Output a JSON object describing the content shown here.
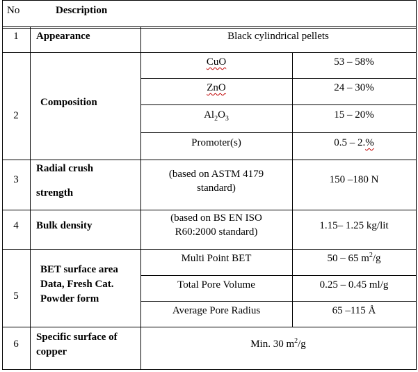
{
  "header": {
    "no": "No",
    "description": "Description"
  },
  "rows": {
    "r1": {
      "no": "1",
      "label": "Appearance",
      "value": "Black cylindrical pellets"
    },
    "r2": {
      "no": "2",
      "label": "Composition",
      "items": [
        {
          "name": "CuO",
          "value": "53 – 58%"
        },
        {
          "name": "ZnO",
          "value": "24 – 30%"
        },
        {
          "name_main": "Al",
          "name_sub1": "2",
          "name_mid": "O",
          "name_sub2": "3",
          "value": "15 – 20%"
        },
        {
          "name": "Promoter(s)",
          "value_main": "0.5 – 2.",
          "value_tail": "%"
        }
      ]
    },
    "r3": {
      "no": "3",
      "label_l1": "Radial crush",
      "label_l2": "strength",
      "note_l1": "(based on ASTM 4179",
      "note_l2": "standard)",
      "value": "150 –180 N"
    },
    "r4": {
      "no": "4",
      "label": "Bulk density",
      "note_l1": "(based on BS EN ISO",
      "note_l2": "R60:2000 standard)",
      "value": "1.15– 1.25 kg/lit"
    },
    "r5": {
      "no": "5",
      "label_l1": "BET surface area",
      "label_l2": "Data, Fresh Cat.",
      "label_l3": "Powder form",
      "items": [
        {
          "name": "Multi Point BET",
          "value_main": "50 – 65 m",
          "value_sup": "2",
          "value_tail": "/g"
        },
        {
          "name": "Total Pore Volume",
          "value": "0.25 – 0.45 ml/g"
        },
        {
          "name": "Average Pore Radius",
          "value": "65 –115 Å"
        }
      ]
    },
    "r6": {
      "no": "6",
      "label_l1": "Specific surface of",
      "label_l2": "copper",
      "value_main": "Min. 30 m",
      "value_sup": "2",
      "value_tail": "/g"
    }
  }
}
